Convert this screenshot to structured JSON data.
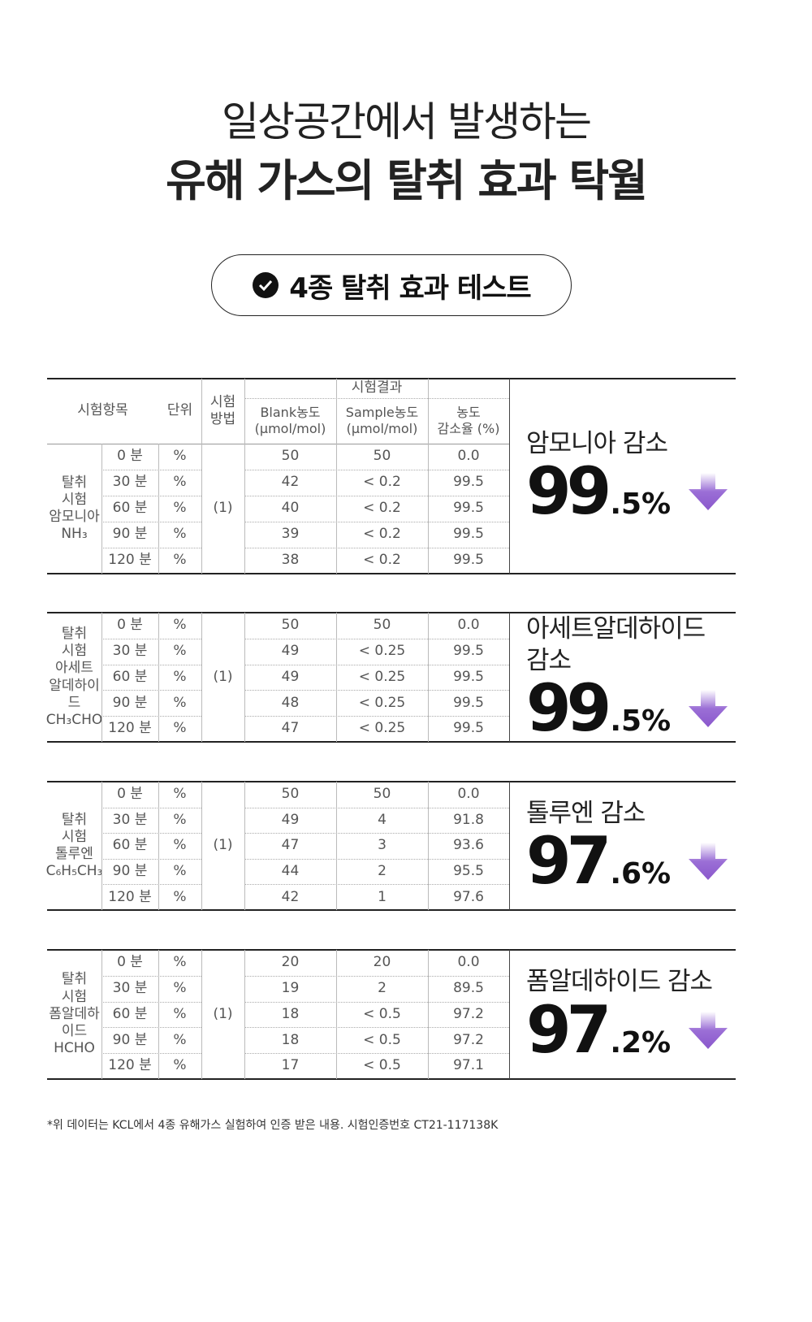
{
  "header": {
    "line1": "일상공간에서 발생하는",
    "line2": "유해 가스의 탈취 효과 탁월"
  },
  "badge": "4종 탈취 효과 테스트",
  "table_header": {
    "item": "시험항목",
    "unit": "단위",
    "method_lines": [
      "시험",
      "방법"
    ],
    "results": "시험결과",
    "blank_lines": [
      "Blank농도",
      "(μmol/mol)"
    ],
    "sample_lines": [
      "Sample농도",
      "(μmol/mol)"
    ],
    "rate_lines": [
      "농도",
      "감소율 (%)"
    ]
  },
  "tests": [
    {
      "name_lines": [
        "탈취",
        "시험",
        "암모니아",
        "NH₃"
      ],
      "method": "(1)",
      "rows": [
        [
          "0 분",
          "%",
          "50",
          "50",
          "0.0"
        ],
        [
          "30 분",
          "%",
          "42",
          "< 0.2",
          "99.5"
        ],
        [
          "60 분",
          "%",
          "40",
          "< 0.2",
          "99.5"
        ],
        [
          "90 분",
          "%",
          "39",
          "< 0.2",
          "99.5"
        ],
        [
          "120 분",
          "%",
          "38",
          "< 0.2",
          "99.5"
        ]
      ],
      "result": {
        "label": "암모니아 감소",
        "big": "99",
        "small": ".5%"
      }
    },
    {
      "name_lines": [
        "탈취",
        "시험",
        "아세트",
        "알데하이드",
        "CH₃CHO"
      ],
      "method": "(1)",
      "rows": [
        [
          "0 분",
          "%",
          "50",
          "50",
          "0.0"
        ],
        [
          "30 분",
          "%",
          "49",
          "< 0.25",
          "99.5"
        ],
        [
          "60 분",
          "%",
          "49",
          "< 0.25",
          "99.5"
        ],
        [
          "90 분",
          "%",
          "48",
          "< 0.25",
          "99.5"
        ],
        [
          "120 분",
          "%",
          "47",
          "< 0.25",
          "99.5"
        ]
      ],
      "result": {
        "label": "아세트알데하이드 감소",
        "big": "99",
        "small": ".5%"
      }
    },
    {
      "name_lines": [
        "탈취",
        "시험",
        "톨루엔",
        "C₆H₅CH₃"
      ],
      "method": "(1)",
      "rows": [
        [
          "0 분",
          "%",
          "50",
          "50",
          "0.0"
        ],
        [
          "30 분",
          "%",
          "49",
          "4",
          "91.8"
        ],
        [
          "60 분",
          "%",
          "47",
          "3",
          "93.6"
        ],
        [
          "90 분",
          "%",
          "44",
          "2",
          "95.5"
        ],
        [
          "120 분",
          "%",
          "42",
          "1",
          "97.6"
        ]
      ],
      "result": {
        "label": "톨루엔 감소",
        "big": "97",
        "small": ".6%"
      }
    },
    {
      "name_lines": [
        "탈취",
        "시험",
        "폼알데하이드",
        "HCHO"
      ],
      "method": "(1)",
      "rows": [
        [
          "0 분",
          "%",
          "20",
          "20",
          "0.0"
        ],
        [
          "30 분",
          "%",
          "19",
          "2",
          "89.5"
        ],
        [
          "60 분",
          "%",
          "18",
          "< 0.5",
          "97.2"
        ],
        [
          "90 분",
          "%",
          "18",
          "< 0.5",
          "97.2"
        ],
        [
          "120 분",
          "%",
          "17",
          "< 0.5",
          "97.1"
        ]
      ],
      "result": {
        "label": "폼알데하이드 감소",
        "big": "97",
        "small": ".2%"
      }
    }
  ],
  "footnote": "*위 데이터는 KCL에서 4종 유해가스 실험하여 인증 받은 내용. 시험인증번호 CT21-117138K"
}
